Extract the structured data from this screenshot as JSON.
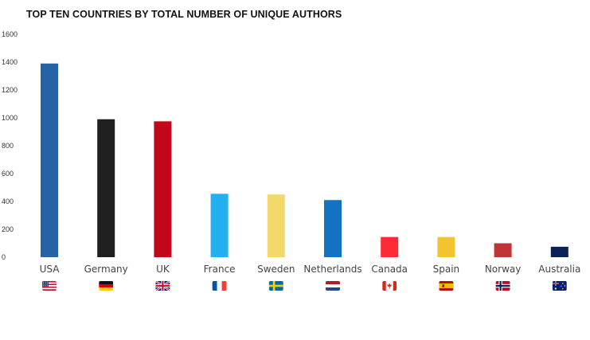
{
  "chart_data": {
    "type": "bar",
    "title": "TOP TEN COUNTRIES BY TOTAL NUMBER OF UNIQUE AUTHORS",
    "xlabel": "",
    "ylabel": "",
    "ylim": [
      0,
      1600
    ],
    "yticks": [
      0,
      200,
      400,
      600,
      800,
      1000,
      1200,
      1400,
      1600
    ],
    "grid": false,
    "legend": "none",
    "categories": [
      "USA",
      "Germany",
      "UK",
      "France",
      "Sweden",
      "Netherlands",
      "Canada",
      "Spain",
      "Norway",
      "Australia"
    ],
    "values": [
      1390,
      990,
      975,
      455,
      450,
      410,
      145,
      145,
      100,
      75
    ],
    "colors": [
      "#2563a6",
      "#1f1f1f",
      "#c0081a",
      "#22b0ef",
      "#f5d86a",
      "#1273c2",
      "#fe2a36",
      "#f2c530",
      "#c13436",
      "#0b2259"
    ],
    "flag_icons": [
      "flag-usa-icon",
      "flag-germany-icon",
      "flag-uk-icon",
      "flag-france-icon",
      "flag-sweden-icon",
      "flag-netherlands-icon",
      "flag-canada-icon",
      "flag-spain-icon",
      "flag-norway-icon",
      "flag-australia-icon"
    ]
  }
}
